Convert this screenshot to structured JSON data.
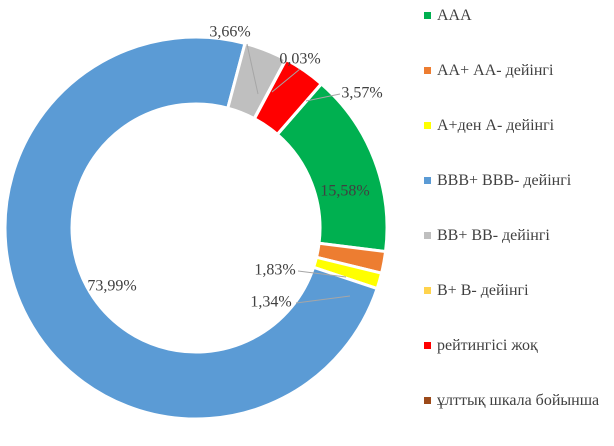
{
  "chart_data": {
    "type": "donut",
    "categories": [
      "ААА",
      "АА+ АА-  дейінгі",
      "А+ден А- дейінгі",
      "BBB+ BBB- дейінгі",
      "BB+ BB- дейінгі",
      "B+ B- дейінгі",
      "рейтингісі жоқ",
      "ұлттық шкала бойынша"
    ],
    "values": [
      15.58,
      1.83,
      1.34,
      73.99,
      3.66,
      0.03,
      3.57,
      0
    ],
    "value_labels": [
      "15,58%",
      "1,83%",
      "1,34%",
      "73,99%",
      "3,66%",
      "0,03%",
      "3,57%",
      null
    ],
    "colors": [
      "#00b050",
      "#ed7d31",
      "#ffff00",
      "#5b9bd5",
      "#bfbfbf",
      "#ffd34d",
      "#ff0000",
      "#9c4a1a"
    ],
    "legend": "right"
  }
}
